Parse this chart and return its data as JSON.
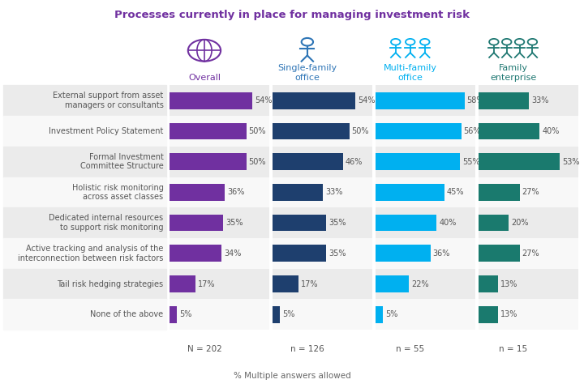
{
  "title": "Processes currently in place for managing investment risk",
  "title_color": "#7030a0",
  "categories": [
    "External support from asset\nmanagers or consultants",
    "Investment Policy Statement",
    "Formal Investment\nCommittee Structure",
    "Holistic risk monitoring\nacross asset classes",
    "Dedicated internal resources\nto support risk monitoring",
    "Active tracking and analysis of the\ninterconnection between risk factors",
    "Tail risk hedging strategies",
    "None of the above"
  ],
  "series_names": [
    "Overall",
    "Single-family office",
    "Multi-family office",
    "Family enterprise"
  ],
  "series_values": [
    [
      54,
      50,
      50,
      36,
      35,
      34,
      17,
      5
    ],
    [
      54,
      50,
      46,
      33,
      35,
      35,
      17,
      5
    ],
    [
      58,
      56,
      55,
      45,
      40,
      36,
      22,
      5
    ],
    [
      33,
      40,
      53,
      27,
      20,
      27,
      13,
      13
    ]
  ],
  "bar_colors": [
    "#7030a0",
    "#1e3f6e",
    "#00b0f0",
    "#1a7a6e"
  ],
  "header_colors": [
    "#7030a0",
    "#2e75b6",
    "#00b0f0",
    "#1f7872"
  ],
  "column_headers": [
    "Overall",
    "Single-family\noffice",
    "Multi-family\noffice",
    "Family\nenterprise"
  ],
  "n_labels": [
    "N = 202",
    "n = 126",
    "n = 55",
    "n = 15"
  ],
  "footnote": "% Multiple answers allowed",
  "row_bg_even": "#ebebeb",
  "row_bg_odd": "#f8f8f8",
  "bar_area_bg": "#f0f0f0",
  "max_val": 65,
  "bar_height": 0.55
}
